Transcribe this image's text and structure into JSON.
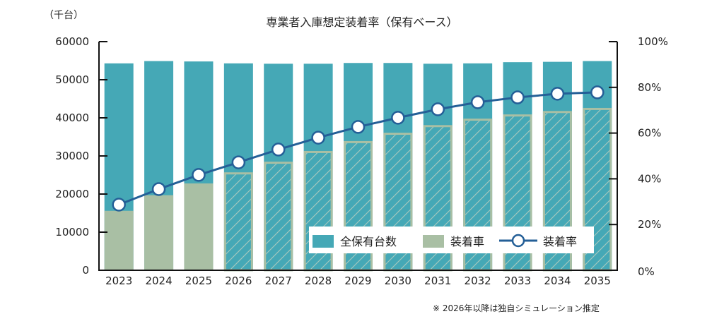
{
  "chart_data": {
    "type": "bar",
    "title": "専業者入庫想定装着率（保有ベース）",
    "left_axis_unit": "（千台）",
    "categories": [
      "2023",
      "2024",
      "2025",
      "2026",
      "2027",
      "2028",
      "2029",
      "2030",
      "2031",
      "2032",
      "2033",
      "2034",
      "2035"
    ],
    "series": [
      {
        "name": "全保有台数",
        "type": "bar",
        "axis": "left",
        "color": "#45a8b6",
        "values": [
          54300,
          54900,
          54800,
          54300,
          54200,
          54200,
          54400,
          54400,
          54200,
          54300,
          54600,
          54700,
          54900
        ]
      },
      {
        "name": "装着車",
        "type": "bar",
        "axis": "left",
        "color": "#a9bfa4",
        "hatched_from": "2026",
        "values": [
          15600,
          19700,
          22800,
          25700,
          28500,
          31300,
          33900,
          36100,
          38100,
          39800,
          40900,
          41800,
          42600
        ]
      },
      {
        "name": "装着率",
        "type": "line",
        "axis": "right",
        "color": "#245f97",
        "unit": "%",
        "values": [
          28.7,
          35.5,
          41.7,
          47.2,
          52.8,
          58.0,
          62.7,
          66.7,
          70.4,
          73.5,
          75.6,
          77.2,
          77.8
        ]
      }
    ],
    "ylim_left": [
      0,
      60000
    ],
    "yticks_left": [
      "0",
      "10000",
      "20000",
      "30000",
      "40000",
      "50000",
      "60000"
    ],
    "ylim_right": [
      0,
      100
    ],
    "yticks_right": [
      "0%",
      "20%",
      "40%",
      "60%",
      "80%",
      "100%"
    ],
    "grid": false,
    "legend_position": "bottom-right inside",
    "legend": [
      "全保有台数",
      "装着車",
      "装着率"
    ],
    "annotation": "※ 2026年以降は独自シミュレーション推定"
  }
}
